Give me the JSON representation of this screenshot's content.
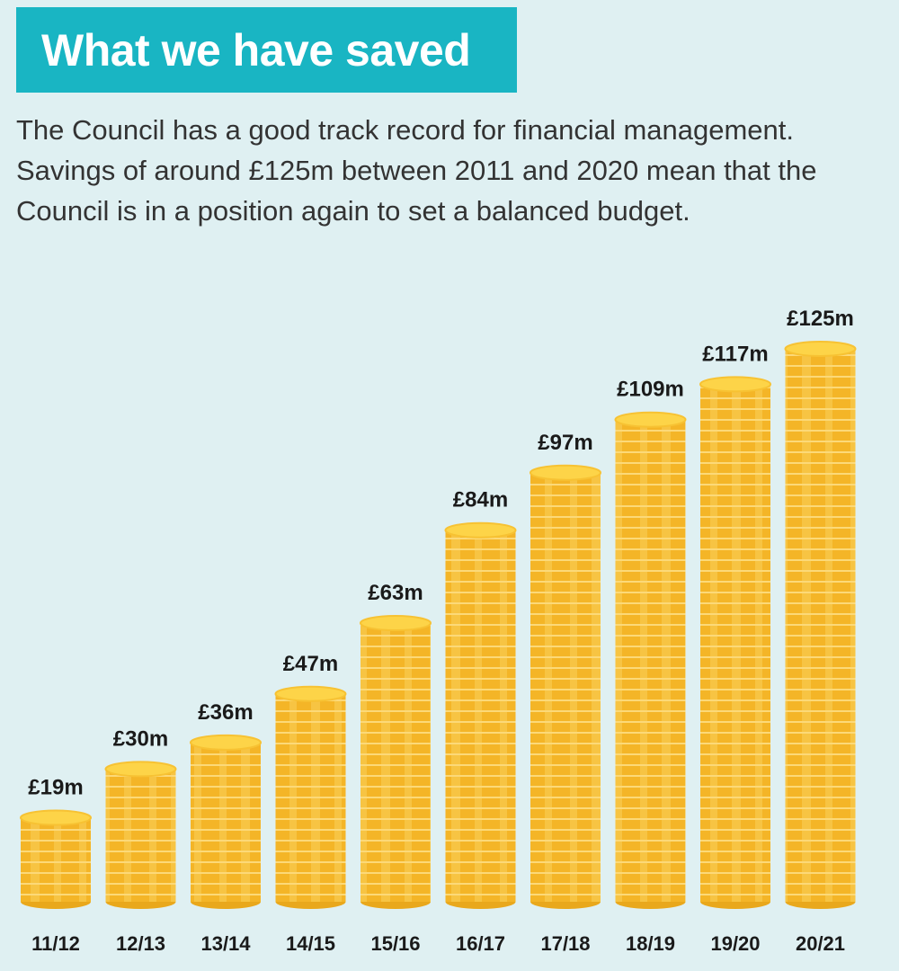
{
  "chart_data": {
    "type": "bar",
    "title": "What we have saved",
    "subtitle": "The Council has a good track record for financial management. Savings of around £125m between 2011 and 2020 mean that the Council is in a position again to set a balanced budget.",
    "categories": [
      "11/12",
      "12/13",
      "13/14",
      "14/15",
      "15/16",
      "16/17",
      "17/18",
      "18/19",
      "19/20",
      "20/21"
    ],
    "values": [
      19,
      30,
      36,
      47,
      63,
      84,
      97,
      109,
      117,
      125
    ],
    "value_labels": [
      "£19m",
      "£30m",
      "£36m",
      "£47m",
      "£63m",
      "£84m",
      "£97m",
      "£109m",
      "£117m",
      "£125m"
    ],
    "color": "#f4b527"
  }
}
